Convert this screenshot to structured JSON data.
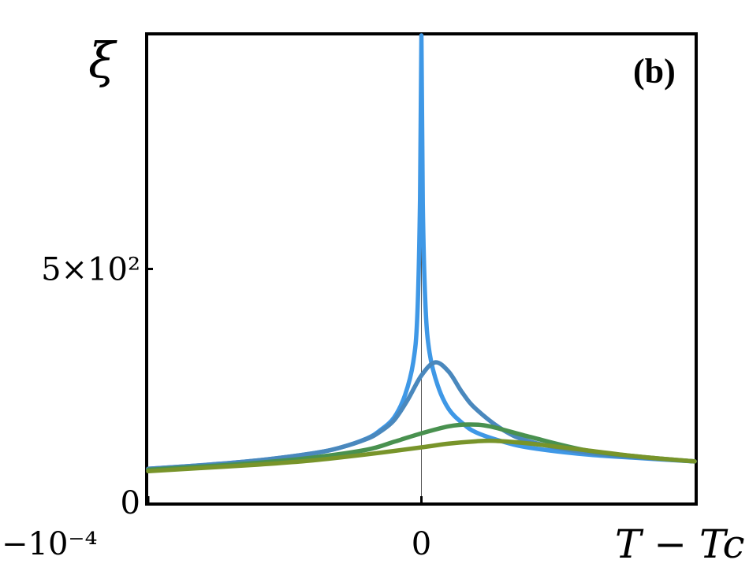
{
  "chart_data": {
    "type": "line",
    "panel_label": "(b)",
    "xlabel": "T − Tc",
    "ylabel": "ξ",
    "x_range": [
      -0.0001,
      0.0001
    ],
    "ylim": [
      0,
      1000
    ],
    "x_ticks": [
      {
        "value": -0.0001,
        "label": "−10⁻⁴"
      },
      {
        "value": 0,
        "label": "0"
      }
    ],
    "y_ticks": [
      {
        "value": 0,
        "label": "0"
      },
      {
        "value": 500,
        "label": "5×10²"
      }
    ],
    "grid": false,
    "legend": "none",
    "series": [
      {
        "color": "#3f98e6",
        "x": [
          -0.0001,
          -8e-05,
          -6e-05,
          -4e-05,
          -3e-05,
          -2e-05,
          -1.5e-05,
          -1e-05,
          -6e-06,
          -3e-06,
          -1.5e-06,
          -5e-07,
          0,
          5e-07,
          1.5e-06,
          3e-06,
          6e-06,
          1e-05,
          1.5e-05,
          2e-05,
          3e-05,
          4e-05,
          6e-05,
          8e-05,
          0.0001
        ],
        "y": [
          72,
          80,
          90,
          105,
          117,
          137,
          155,
          182,
          230,
          300,
          400,
          650,
          1000,
          640,
          420,
          320,
          250,
          200,
          170,
          150,
          130,
          117,
          103,
          95,
          88
        ]
      },
      {
        "color": "#4a88bd",
        "x": [
          -0.0001,
          -8e-05,
          -6e-05,
          -4e-05,
          -3e-05,
          -2e-05,
          -1.5e-05,
          -1e-05,
          -5e-06,
          0,
          5e-06,
          1e-05,
          1.5e-05,
          2e-05,
          3e-05,
          4e-05,
          6e-05,
          8e-05,
          0.0001
        ],
        "y": [
          72,
          80,
          90,
          105,
          117,
          136,
          152,
          176,
          220,
          272,
          300,
          280,
          235,
          200,
          155,
          130,
          107,
          96,
          88
        ]
      },
      {
        "color": "#49914f",
        "x": [
          -0.0001,
          -8e-05,
          -6e-05,
          -4e-05,
          -2e-05,
          -1e-05,
          0,
          1e-05,
          1.7e-05,
          2.5e-05,
          4e-05,
          6e-05,
          8e-05,
          0.0001
        ],
        "y": [
          70,
          77,
          85,
          96,
          113,
          130,
          148,
          163,
          167,
          163,
          140,
          112,
          98,
          88
        ]
      },
      {
        "color": "#78942a",
        "x": [
          -0.0001,
          -8e-05,
          -6e-05,
          -4e-05,
          -2e-05,
          0,
          1e-05,
          2e-05,
          2.7e-05,
          4e-05,
          6e-05,
          8e-05,
          0.0001
        ],
        "y": [
          67,
          74,
          81,
          90,
          103,
          118,
          126,
          131,
          132,
          126,
          112,
          98,
          88
        ]
      }
    ]
  }
}
